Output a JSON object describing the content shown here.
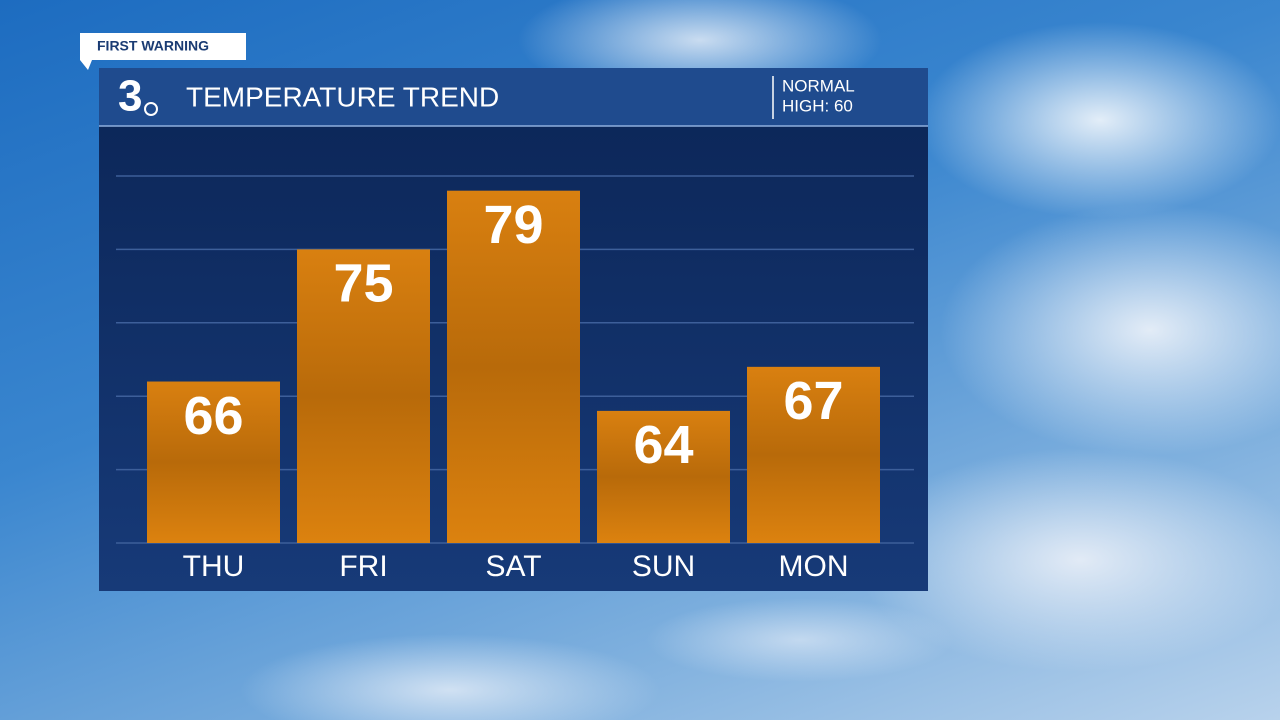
{
  "badge": "FIRST WARNING",
  "logo": "3",
  "normal_label": "NORMAL",
  "normal_value": "HIGH: 60",
  "chart_data": {
    "type": "bar",
    "title": "TEMPERATURE TREND",
    "categories": [
      "THU",
      "FRI",
      "SAT",
      "SUN",
      "MON"
    ],
    "values": [
      66,
      75,
      79,
      64,
      67
    ],
    "color": "#d67c0e",
    "ylim": [
      55,
      80
    ],
    "yticks": [
      55,
      60,
      65,
      70,
      75,
      80
    ],
    "grid": true
  }
}
